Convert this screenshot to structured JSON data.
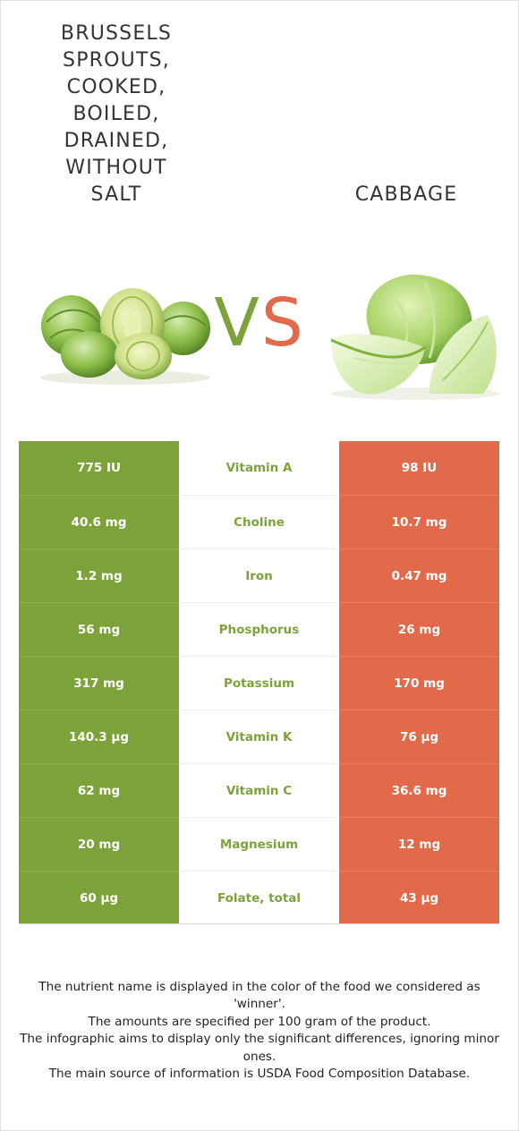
{
  "comparison": {
    "left_food": "Brussels sprouts, cooked, boiled, drained, without salt",
    "left_food_display": "BRUSSELS\nSPROUTS,\nCOOKED,\nBOILED,\nDRAINED,\nWITHOUT\nSALT",
    "right_food": "CABBAGE",
    "vs_v": "V",
    "vs_s": "S"
  },
  "colors": {
    "left_accent": "#7da23a",
    "right_accent": "#e2694a"
  },
  "rows": [
    {
      "left": "775 IU",
      "nutrient": "Vitamin A",
      "right": "98 IU"
    },
    {
      "left": "40.6 mg",
      "nutrient": "Choline",
      "right": "10.7 mg"
    },
    {
      "left": "1.2 mg",
      "nutrient": "Iron",
      "right": "0.47 mg"
    },
    {
      "left": "56 mg",
      "nutrient": "Phosphorus",
      "right": "26 mg"
    },
    {
      "left": "317 mg",
      "nutrient": "Potassium",
      "right": "170 mg"
    },
    {
      "left": "140.3 µg",
      "nutrient": "Vitamin K",
      "right": "76 µg"
    },
    {
      "left": "62 mg",
      "nutrient": "Vitamin C",
      "right": "36.6 mg"
    },
    {
      "left": "20 mg",
      "nutrient": "Magnesium",
      "right": "12 mg"
    },
    {
      "left": "60 µg",
      "nutrient": "Folate, total",
      "right": "43 µg"
    }
  ],
  "notes": [
    "The nutrient name is displayed in the color of the food we considered as 'winner'.",
    "The amounts are specified per 100 gram of the product.",
    "The infographic aims to display only the significant differences, ignoring minor ones.",
    "The main source of information is USDA Food Composition Database."
  ]
}
